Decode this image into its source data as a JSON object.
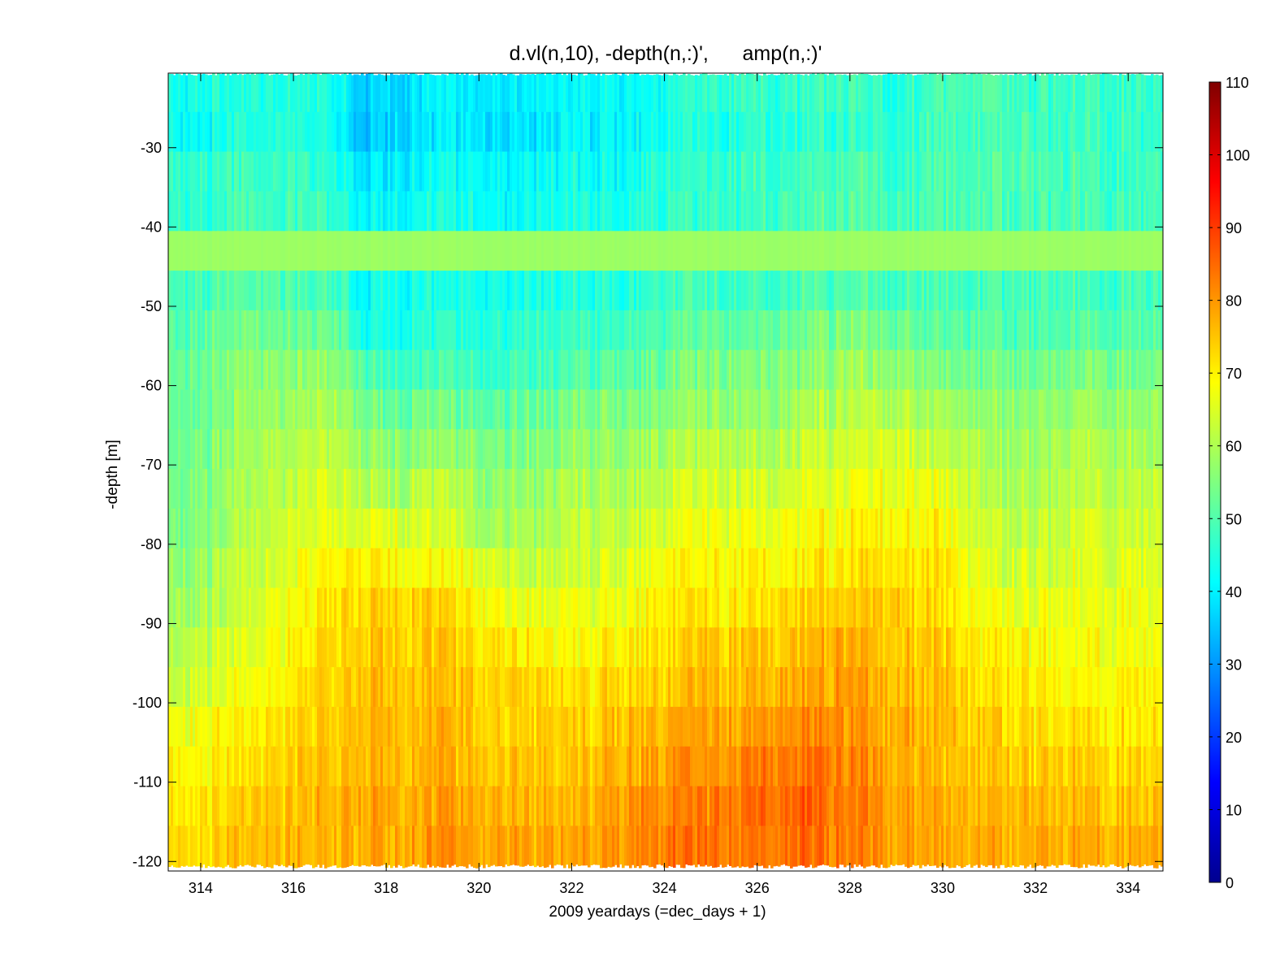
{
  "chart_data": {
    "type": "heatmap",
    "title": "d.vl(n,10), -depth(n,:)',      amp(n,:)'",
    "xlabel": "2009 yeardays (=dec_days + 1)",
    "ylabel": "-depth [m]",
    "xlim": [
      313.3,
      334.75
    ],
    "ylim": [
      -121.2,
      -20.6
    ],
    "x_ticks": [
      314,
      316,
      318,
      320,
      322,
      324,
      326,
      328,
      330,
      332,
      334
    ],
    "y_ticks": [
      -30,
      -40,
      -50,
      -60,
      -70,
      -80,
      -90,
      -100,
      -110,
      -120
    ],
    "colorbar": {
      "clim": [
        0,
        110
      ],
      "ticks": [
        0,
        10,
        20,
        30,
        40,
        50,
        60,
        70,
        80,
        90,
        100,
        110
      ],
      "colormap": "jet"
    },
    "grid": false,
    "depth_bins": [
      -23,
      -28,
      -33,
      -38,
      -43,
      -48,
      -53,
      -58,
      -63,
      -68,
      -73,
      -78,
      -83,
      -88,
      -93,
      -98,
      -103,
      -108,
      -113,
      -118
    ],
    "time_nodes": [
      313.3,
      314,
      315,
      316,
      317,
      317.5,
      318,
      319,
      320,
      321,
      322,
      323,
      324,
      325,
      326,
      327,
      328,
      329,
      330,
      331,
      332,
      333,
      334,
      334.75
    ],
    "amp_profile_by_time": [
      [
        43,
        42,
        46,
        46,
        58,
        48,
        50,
        52,
        52,
        52,
        53,
        54,
        56,
        58,
        60,
        62,
        66,
        69,
        71,
        72
      ],
      [
        44,
        43,
        47,
        47,
        58,
        49,
        51,
        53,
        53,
        54,
        55,
        56,
        58,
        60,
        62,
        64,
        68,
        70,
        72,
        73
      ],
      [
        44,
        44,
        47,
        48,
        58,
        50,
        54,
        56,
        57,
        58,
        59,
        60,
        62,
        63,
        65,
        67,
        69,
        71,
        73,
        75
      ],
      [
        45,
        45,
        48,
        48,
        58,
        50,
        53,
        56,
        58,
        60,
        62,
        64,
        66,
        68,
        69,
        70,
        72,
        74,
        75,
        76
      ],
      [
        43,
        42,
        45,
        46,
        58,
        48,
        52,
        56,
        60,
        62,
        64,
        66,
        70,
        72,
        73,
        74,
        75,
        76,
        77,
        77
      ],
      [
        36,
        35,
        38,
        40,
        58,
        41,
        44,
        50,
        54,
        58,
        62,
        66,
        70,
        72,
        74,
        76,
        77,
        77,
        78,
        78
      ],
      [
        38,
        37,
        40,
        42,
        58,
        43,
        45,
        48,
        52,
        56,
        60,
        66,
        70,
        74,
        75,
        76,
        77,
        77,
        78,
        78
      ],
      [
        39,
        38,
        41,
        43,
        58,
        43,
        45,
        48,
        53,
        57,
        61,
        64,
        68,
        72,
        74,
        75,
        76,
        77,
        78,
        79
      ],
      [
        40,
        39,
        42,
        43,
        58,
        44,
        46,
        48,
        52,
        56,
        58,
        60,
        66,
        70,
        72,
        74,
        75,
        76,
        78,
        79
      ],
      [
        39,
        39,
        41,
        42,
        58,
        44,
        46,
        48,
        52,
        55,
        57,
        59,
        62,
        66,
        70,
        73,
        74,
        75,
        77,
        78
      ],
      [
        41,
        41,
        43,
        44,
        58,
        45,
        48,
        50,
        54,
        57,
        60,
        62,
        64,
        66,
        68,
        71,
        73,
        74,
        76,
        78
      ],
      [
        41,
        40,
        42,
        43,
        58,
        45,
        48,
        51,
        55,
        58,
        60,
        62,
        64,
        66,
        70,
        72,
        75,
        77,
        79,
        80
      ],
      [
        43,
        43,
        46,
        46,
        58,
        47,
        50,
        53,
        56,
        59,
        62,
        65,
        68,
        70,
        72,
        74,
        77,
        79,
        81,
        83
      ],
      [
        46,
        45,
        47,
        47,
        58,
        48,
        52,
        55,
        58,
        61,
        64,
        67,
        69,
        71,
        74,
        76,
        78,
        80,
        82,
        83
      ],
      [
        47,
        46,
        48,
        48,
        58,
        48,
        52,
        55,
        58,
        61,
        64,
        67,
        70,
        72,
        75,
        77,
        80,
        83,
        85,
        84
      ],
      [
        47,
        46,
        48,
        49,
        58,
        49,
        53,
        56,
        59,
        62,
        65,
        68,
        70,
        73,
        76,
        78,
        81,
        84,
        86,
        85
      ],
      [
        48,
        47,
        49,
        50,
        58,
        50,
        55,
        58,
        61,
        64,
        67,
        69,
        71,
        74,
        77,
        79,
        80,
        82,
        83,
        82
      ],
      [
        46,
        46,
        48,
        49,
        58,
        49,
        53,
        57,
        62,
        65,
        68,
        71,
        73,
        75,
        76,
        77,
        78,
        79,
        80,
        80
      ],
      [
        49,
        49,
        50,
        50,
        58,
        49,
        51,
        55,
        58,
        62,
        66,
        69,
        71,
        72,
        74,
        75,
        76,
        76,
        77,
        78
      ],
      [
        49,
        48,
        49,
        49,
        58,
        48,
        50,
        53,
        56,
        58,
        60,
        62,
        64,
        66,
        69,
        71,
        73,
        74,
        76,
        77
      ],
      [
        48,
        48,
        49,
        49,
        58,
        48,
        50,
        53,
        56,
        58,
        60,
        62,
        64,
        66,
        68,
        70,
        72,
        74,
        76,
        77
      ],
      [
        48,
        48,
        49,
        49,
        58,
        48,
        51,
        55,
        58,
        60,
        62,
        64,
        65,
        67,
        68,
        70,
        72,
        74,
        76,
        78
      ],
      [
        47,
        47,
        48,
        48,
        58,
        48,
        51,
        54,
        57,
        60,
        62,
        64,
        66,
        67,
        68,
        70,
        71,
        73,
        75,
        77
      ],
      [
        46,
        46,
        47,
        47,
        58,
        47,
        50,
        53,
        56,
        58,
        60,
        62,
        64,
        65,
        66,
        68,
        70,
        72,
        74,
        76
      ]
    ]
  }
}
